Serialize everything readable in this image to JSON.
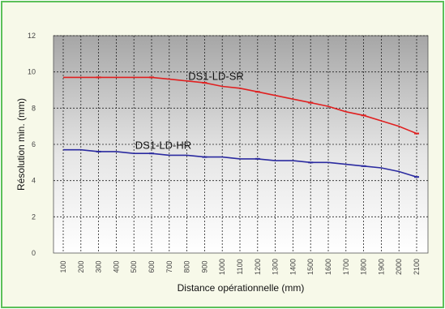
{
  "chart_data": {
    "type": "line",
    "xlabel": "Distance opérationnelle (mm)",
    "ylabel": "Résolution min. (mm)",
    "x": [
      100,
      200,
      300,
      400,
      500,
      600,
      700,
      800,
      900,
      1000,
      1100,
      1200,
      1300,
      1400,
      1500,
      1600,
      1700,
      1800,
      1900,
      2000,
      2100
    ],
    "x_tick_labels": [
      "100",
      "200",
      "300",
      "400",
      "500",
      "600",
      "700",
      "800",
      "900",
      "1000",
      "1100",
      "1200",
      "1300",
      "1400",
      "1500",
      "1600",
      "1700",
      "1800",
      "1900",
      "2000",
      "2100"
    ],
    "y_tick_labels": [
      "0",
      "2",
      "4",
      "6",
      "8",
      "10",
      "12"
    ],
    "xlim": [
      100,
      2100
    ],
    "ylim": [
      0,
      12
    ],
    "grid": true,
    "series": [
      {
        "name": "DS1-LD-SR",
        "color": "#e02020",
        "values": [
          9.7,
          9.7,
          9.7,
          9.7,
          9.7,
          9.7,
          9.6,
          9.5,
          9.4,
          9.2,
          9.1,
          8.9,
          8.7,
          8.5,
          8.3,
          8.1,
          7.8,
          7.6,
          7.3,
          7.0,
          6.6
        ]
      },
      {
        "name": "DS1-LD-HR",
        "color": "#2b2ba0",
        "values": [
          5.7,
          5.7,
          5.6,
          5.6,
          5.5,
          5.5,
          5.4,
          5.4,
          5.3,
          5.3,
          5.2,
          5.2,
          5.1,
          5.1,
          5.0,
          5.0,
          4.9,
          4.8,
          4.7,
          4.5,
          4.2
        ]
      }
    ]
  }
}
